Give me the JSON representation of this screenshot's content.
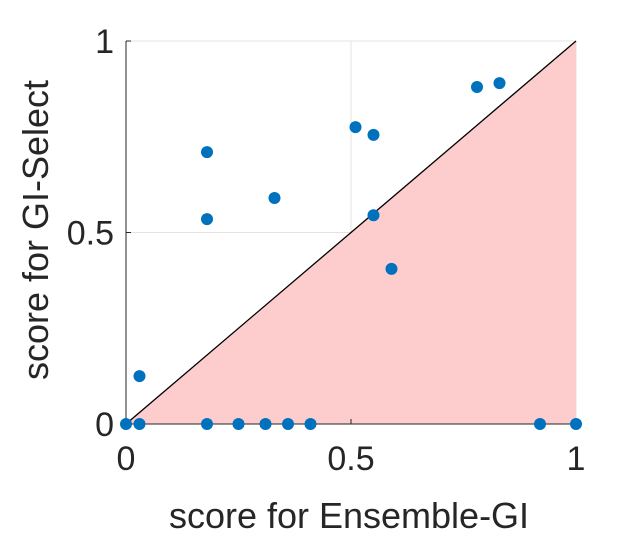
{
  "chart_data": {
    "type": "scatter",
    "xlabel": "score for Ensemble-GI",
    "ylabel": "score for GI-Select",
    "xlim": [
      0,
      1
    ],
    "ylim": [
      0,
      1
    ],
    "x_ticks": [
      0,
      0.5,
      1
    ],
    "y_ticks": [
      0,
      0.5,
      1
    ],
    "x_tick_labels": [
      "0",
      "0.5",
      "1"
    ],
    "y_tick_labels": [
      "0",
      "0.5",
      "1"
    ],
    "grid": true,
    "diagonal_line": true,
    "region_below_diagonal_color": "#fdcccc",
    "marker_color": "#0072bd",
    "series": [
      {
        "points": [
          {
            "x": 0.0,
            "y": 0.0
          },
          {
            "x": 0.03,
            "y": 0.0
          },
          {
            "x": 0.03,
            "y": 0.125
          },
          {
            "x": 0.18,
            "y": 0.71
          },
          {
            "x": 0.18,
            "y": 0.535
          },
          {
            "x": 0.18,
            "y": 0.0
          },
          {
            "x": 0.25,
            "y": 0.0
          },
          {
            "x": 0.31,
            "y": 0.0
          },
          {
            "x": 0.33,
            "y": 0.59
          },
          {
            "x": 0.36,
            "y": 0.0
          },
          {
            "x": 0.41,
            "y": 0.0
          },
          {
            "x": 0.51,
            "y": 0.775
          },
          {
            "x": 0.55,
            "y": 0.755
          },
          {
            "x": 0.55,
            "y": 0.545
          },
          {
            "x": 0.59,
            "y": 0.405
          },
          {
            "x": 0.78,
            "y": 0.88
          },
          {
            "x": 0.83,
            "y": 0.89
          },
          {
            "x": 0.92,
            "y": 0.0
          },
          {
            "x": 1.0,
            "y": 0.0
          }
        ]
      }
    ]
  }
}
